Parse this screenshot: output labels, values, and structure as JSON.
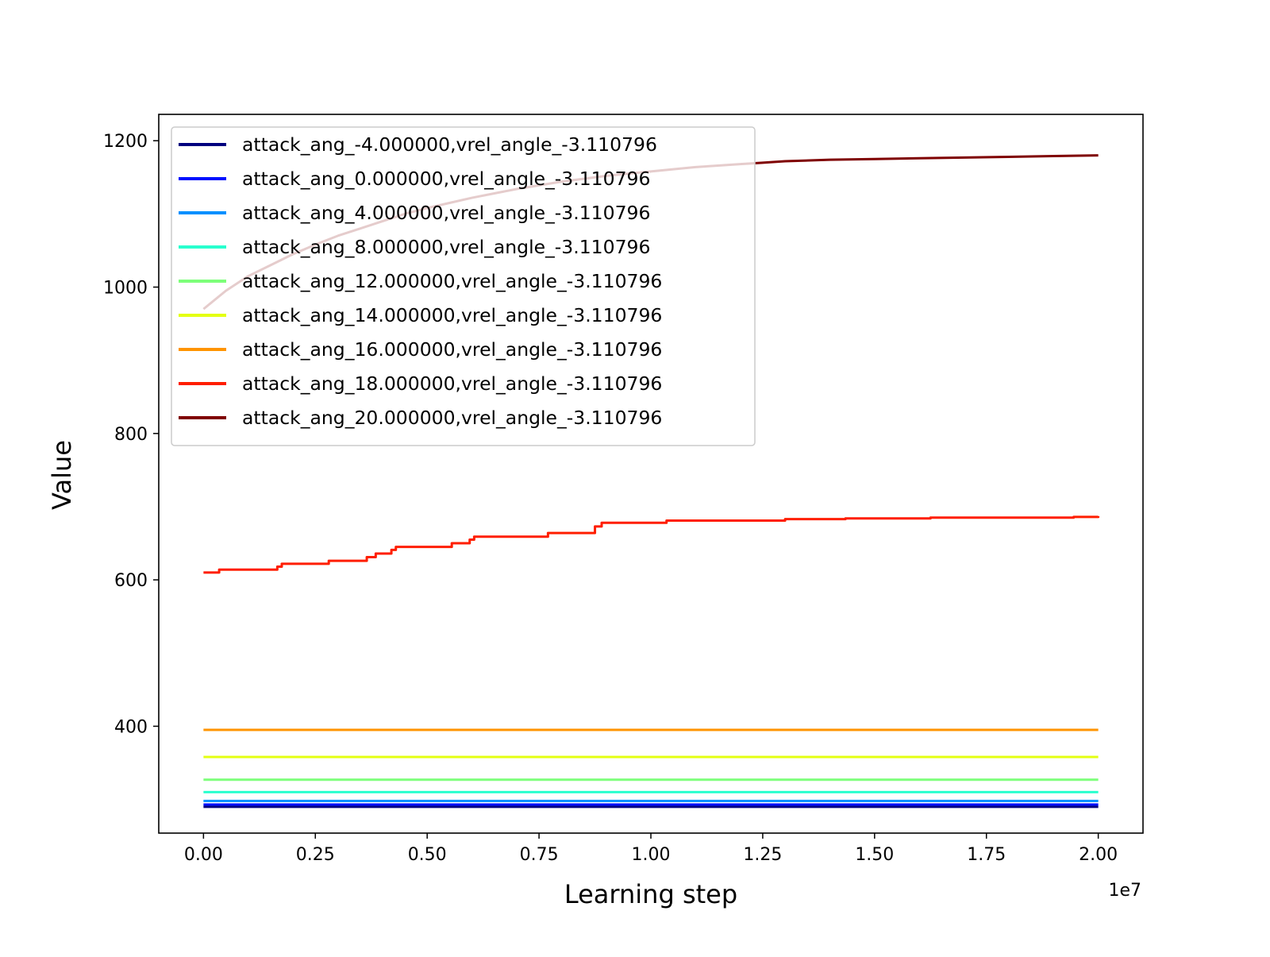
{
  "chart_data": {
    "type": "line",
    "title": "",
    "xlabel": "Learning step",
    "ylabel": "Value",
    "x_offset_label": "1e7",
    "xlim": [
      -1000000,
      21000000
    ],
    "ylim": [
      254,
      1236
    ],
    "x_ticks": [
      0,
      2500000,
      5000000,
      7500000,
      10000000,
      12500000,
      15000000,
      17500000,
      20000000
    ],
    "x_tick_labels": [
      "0.00",
      "0.25",
      "0.50",
      "0.75",
      "1.00",
      "1.25",
      "1.50",
      "1.75",
      "2.00"
    ],
    "y_ticks": [
      400,
      600,
      800,
      1000,
      1200
    ],
    "y_tick_labels": [
      "400",
      "600",
      "800",
      "1000",
      "1200"
    ],
    "grid": false,
    "legend_position": "upper-left",
    "series": [
      {
        "name": "attack_ang_-4.000000,vrel_angle_-3.110796",
        "color": "#00007f",
        "x": [
          0,
          20000000
        ],
        "y": [
          290,
          290
        ],
        "step": true
      },
      {
        "name": "attack_ang_0.000000,vrel_angle_-3.110796",
        "color": "#0010ff",
        "x": [
          0,
          20000000
        ],
        "y": [
          293,
          293
        ],
        "step": true
      },
      {
        "name": "attack_ang_4.000000,vrel_angle_-3.110796",
        "color": "#0090ff",
        "x": [
          0,
          20000000
        ],
        "y": [
          298,
          298
        ],
        "step": true
      },
      {
        "name": "attack_ang_8.000000,vrel_angle_-3.110796",
        "color": "#29ffce",
        "x": [
          0,
          20000000
        ],
        "y": [
          310,
          310
        ],
        "step": true
      },
      {
        "name": "attack_ang_12.000000,vrel_angle_-3.110796",
        "color": "#7dff7a",
        "x": [
          0,
          20000000
        ],
        "y": [
          327,
          327
        ],
        "step": true
      },
      {
        "name": "attack_ang_14.000000,vrel_angle_-3.110796",
        "color": "#e4ff13",
        "x": [
          0,
          20000000
        ],
        "y": [
          358,
          358
        ],
        "step": true
      },
      {
        "name": "attack_ang_16.000000,vrel_angle_-3.110796",
        "color": "#ff9400",
        "x": [
          0,
          20000000
        ],
        "y": [
          395,
          395
        ],
        "step": true
      },
      {
        "name": "attack_ang_18.000000,vrel_angle_-3.110796",
        "color": "#ff1e00",
        "x": [
          0,
          350000,
          1650000,
          1750000,
          2800000,
          3650000,
          3850000,
          4200000,
          4300000,
          5550000,
          5950000,
          6050000,
          7700000,
          8750000,
          8900000,
          10350000,
          13000000,
          14350000,
          16250000,
          19450000,
          20000000
        ],
        "y": [
          610,
          614,
          618,
          622,
          626,
          631,
          636,
          641,
          645,
          650,
          655,
          659,
          664,
          673,
          678,
          681,
          683,
          684,
          685,
          686,
          687
        ],
        "step": true
      },
      {
        "name": "attack_ang_20.000000,vrel_angle_-3.110796",
        "color": "#7f0000",
        "x": [
          0,
          500000,
          1000000,
          1500000,
          2000000,
          2500000,
          3000000,
          3500000,
          4000000,
          4500000,
          5000000,
          5500000,
          6000000,
          6500000,
          7000000,
          7500000,
          8000000,
          8500000,
          9000000,
          9500000,
          10000000,
          10500000,
          11000000,
          11500000,
          12000000,
          12500000,
          13000000,
          14000000,
          15000000,
          16000000,
          17000000,
          18000000,
          19000000,
          20000000
        ],
        "y": [
          970,
          995,
          1015,
          1030,
          1045,
          1058,
          1070,
          1080,
          1090,
          1100,
          1108,
          1115,
          1122,
          1128,
          1134,
          1139,
          1144,
          1148,
          1152,
          1155,
          1158,
          1161,
          1164,
          1166,
          1168,
          1170,
          1172,
          1174,
          1175,
          1176,
          1177,
          1178,
          1179,
          1180
        ],
        "step": false
      }
    ]
  }
}
